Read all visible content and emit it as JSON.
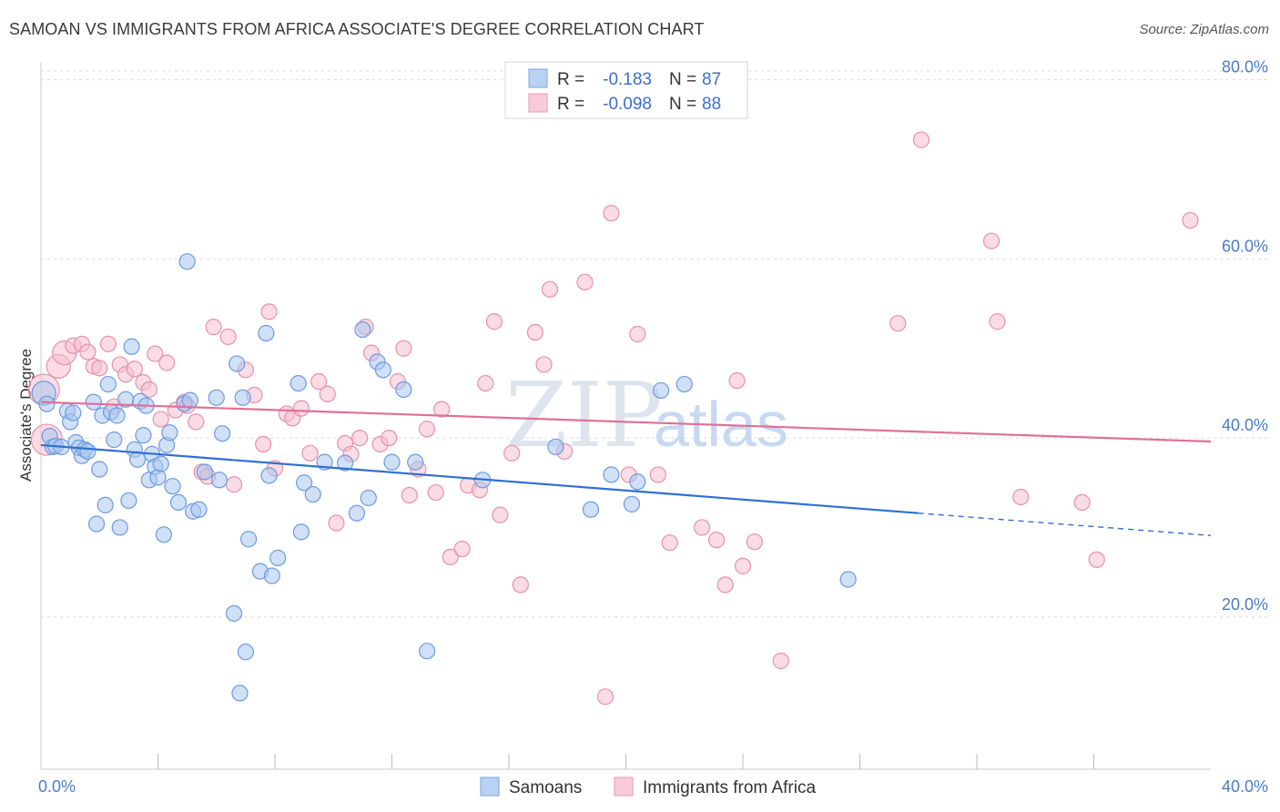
{
  "title": "SAMOAN VS IMMIGRANTS FROM AFRICA ASSOCIATE'S DEGREE CORRELATION CHART",
  "source": "Source: ZipAtlas.com",
  "watermark": {
    "zip": "ZIP",
    "atlas": "atlas"
  },
  "chart_data": {
    "type": "scatter",
    "xlabel": "",
    "ylabel": "Associate's Degree",
    "xlim": [
      0,
      40
    ],
    "ylim": [
      3,
      82
    ],
    "x_ticks": [
      {
        "value": 0,
        "label": "0.0%"
      },
      {
        "value": 40,
        "label": "40.0%"
      }
    ],
    "x_minor_ticks": [
      4,
      8,
      12,
      16,
      20,
      24,
      28,
      32,
      36
    ],
    "y_ticks": [
      {
        "value": 20,
        "label": "20.0%"
      },
      {
        "value": 40,
        "label": "40.0%"
      },
      {
        "value": 60,
        "label": "60.0%"
      },
      {
        "value": 80,
        "label": "80.0%"
      }
    ],
    "grid": true,
    "legend": {
      "position": "top-center",
      "entries": [
        {
          "r_label": "R =",
          "r_value": "-0.183",
          "n_label": "N =",
          "n_value": "87"
        },
        {
          "r_label": "R =",
          "r_value": "-0.098",
          "n_label": "N =",
          "n_value": "88"
        }
      ]
    },
    "series": [
      {
        "name": "Samoans",
        "color": "#a9c7ef",
        "stroke": "#6b9be0",
        "line_color": "#2f6fd0",
        "trend": {
          "x0": 0,
          "y0": 39.2,
          "x1": 30,
          "y1": 31.6,
          "dash_to_x": 40,
          "dash_to_y": 29.1
        },
        "points": [
          [
            0.1,
            45.0,
            2
          ],
          [
            0.2,
            43.8,
            1
          ],
          [
            0.3,
            40.2,
            1
          ],
          [
            0.4,
            39.0,
            1
          ],
          [
            0.5,
            39.1,
            1
          ],
          [
            0.7,
            39.0,
            1
          ],
          [
            0.9,
            43.0,
            1
          ],
          [
            1.0,
            41.8,
            1
          ],
          [
            1.1,
            42.8,
            1
          ],
          [
            1.2,
            39.5,
            1
          ],
          [
            1.3,
            38.9,
            1
          ],
          [
            1.4,
            38.0,
            1
          ],
          [
            1.5,
            38.7,
            1
          ],
          [
            1.6,
            38.5,
            1
          ],
          [
            1.8,
            44.0,
            1
          ],
          [
            1.9,
            30.4,
            1
          ],
          [
            2.0,
            36.5,
            1
          ],
          [
            2.1,
            42.5,
            1
          ],
          [
            2.2,
            32.5,
            1
          ],
          [
            2.3,
            46.0,
            1
          ],
          [
            2.4,
            42.9,
            1
          ],
          [
            2.5,
            39.8,
            1
          ],
          [
            2.6,
            42.5,
            1
          ],
          [
            2.7,
            30.0,
            1
          ],
          [
            2.9,
            44.3,
            1
          ],
          [
            3.0,
            33.0,
            1
          ],
          [
            3.1,
            50.2,
            1
          ],
          [
            3.2,
            38.7,
            1
          ],
          [
            3.3,
            37.6,
            1
          ],
          [
            3.4,
            44.1,
            1
          ],
          [
            3.5,
            40.3,
            1
          ],
          [
            3.6,
            43.6,
            1
          ],
          [
            3.7,
            35.3,
            1
          ],
          [
            3.8,
            38.2,
            1
          ],
          [
            3.9,
            36.8,
            1
          ],
          [
            4.0,
            35.6,
            1
          ],
          [
            4.1,
            37.1,
            1
          ],
          [
            4.2,
            29.2,
            1
          ],
          [
            4.3,
            39.2,
            1
          ],
          [
            4.4,
            40.6,
            1
          ],
          [
            4.5,
            34.6,
            1
          ],
          [
            4.7,
            32.8,
            1
          ],
          [
            4.9,
            43.8,
            1
          ],
          [
            5.0,
            59.7,
            1
          ],
          [
            5.1,
            44.2,
            1
          ],
          [
            5.2,
            31.8,
            1
          ],
          [
            5.4,
            32.0,
            1
          ],
          [
            5.6,
            36.2,
            1
          ],
          [
            6.0,
            44.5,
            1
          ],
          [
            6.1,
            35.3,
            1
          ],
          [
            6.2,
            40.5,
            1
          ],
          [
            6.6,
            20.4,
            1
          ],
          [
            6.7,
            48.3,
            1
          ],
          [
            6.8,
            11.5,
            1
          ],
          [
            6.9,
            44.5,
            1
          ],
          [
            7.0,
            16.1,
            1
          ],
          [
            7.1,
            28.7,
            1
          ],
          [
            7.5,
            25.1,
            1
          ],
          [
            7.7,
            51.7,
            1
          ],
          [
            7.8,
            35.8,
            1
          ],
          [
            7.9,
            24.6,
            1
          ],
          [
            8.1,
            26.6,
            1
          ],
          [
            8.8,
            46.1,
            1
          ],
          [
            8.9,
            29.5,
            1
          ],
          [
            9.0,
            35.0,
            1
          ],
          [
            9.3,
            33.7,
            1
          ],
          [
            9.7,
            37.3,
            1
          ],
          [
            10.4,
            37.2,
            1
          ],
          [
            10.8,
            31.6,
            1
          ],
          [
            11.0,
            52.1,
            1
          ],
          [
            11.2,
            33.3,
            1
          ],
          [
            11.5,
            48.5,
            1
          ],
          [
            11.7,
            47.6,
            1
          ],
          [
            12.0,
            37.3,
            1
          ],
          [
            12.4,
            45.4,
            1
          ],
          [
            12.8,
            37.3,
            1
          ],
          [
            13.2,
            16.2,
            1
          ],
          [
            15.1,
            35.3,
            1
          ],
          [
            17.6,
            39.0,
            1
          ],
          [
            18.8,
            32.0,
            1
          ],
          [
            19.5,
            35.9,
            1
          ],
          [
            20.2,
            32.6,
            1
          ],
          [
            20.4,
            35.1,
            1
          ],
          [
            21.2,
            45.3,
            1
          ],
          [
            22.0,
            46.0,
            1
          ],
          [
            27.6,
            24.2,
            1
          ]
        ]
      },
      {
        "name": "Immigrants from Africa",
        "color": "#f6c0d0",
        "stroke": "#e890aa",
        "line_color": "#e07099",
        "trend": {
          "x0": 0,
          "y0": 44.0,
          "x1": 40,
          "y1": 39.6
        },
        "points": [
          [
            0.1,
            45.4,
            3
          ],
          [
            0.2,
            39.8,
            3
          ],
          [
            0.6,
            48.0,
            2
          ],
          [
            0.8,
            49.5,
            2
          ],
          [
            1.1,
            50.3,
            1
          ],
          [
            1.4,
            50.5,
            1
          ],
          [
            1.6,
            49.6,
            1
          ],
          [
            1.8,
            48.0,
            1
          ],
          [
            2.0,
            47.8,
            1
          ],
          [
            2.3,
            50.5,
            1
          ],
          [
            2.5,
            43.5,
            1
          ],
          [
            2.7,
            48.2,
            1
          ],
          [
            2.9,
            47.1,
            1
          ],
          [
            3.2,
            47.7,
            1
          ],
          [
            3.5,
            46.2,
            1
          ],
          [
            3.7,
            45.4,
            1
          ],
          [
            3.9,
            49.4,
            1
          ],
          [
            4.1,
            42.1,
            1
          ],
          [
            4.3,
            48.4,
            1
          ],
          [
            4.6,
            43.1,
            1
          ],
          [
            4.9,
            44.0,
            1
          ],
          [
            5.0,
            43.6,
            1
          ],
          [
            5.3,
            41.8,
            1
          ],
          [
            5.5,
            36.2,
            1
          ],
          [
            5.7,
            35.7,
            1
          ],
          [
            5.9,
            52.4,
            1
          ],
          [
            6.4,
            51.3,
            1
          ],
          [
            6.6,
            34.8,
            1
          ],
          [
            7.0,
            47.6,
            1
          ],
          [
            7.3,
            44.8,
            1
          ],
          [
            7.6,
            39.3,
            1
          ],
          [
            7.8,
            54.1,
            1
          ],
          [
            8.0,
            36.6,
            1
          ],
          [
            8.4,
            42.7,
            1
          ],
          [
            8.6,
            42.2,
            1
          ],
          [
            8.9,
            43.3,
            1
          ],
          [
            9.2,
            38.3,
            1
          ],
          [
            9.5,
            46.3,
            1
          ],
          [
            9.8,
            44.9,
            1
          ],
          [
            10.1,
            30.5,
            1
          ],
          [
            10.4,
            39.4,
            1
          ],
          [
            10.6,
            38.2,
            1
          ],
          [
            10.9,
            40.0,
            1
          ],
          [
            11.1,
            52.4,
            1
          ],
          [
            11.3,
            49.5,
            1
          ],
          [
            11.6,
            39.3,
            1
          ],
          [
            11.9,
            40.0,
            1
          ],
          [
            12.2,
            46.3,
            1
          ],
          [
            12.4,
            50.0,
            1
          ],
          [
            12.6,
            33.6,
            1
          ],
          [
            12.9,
            36.5,
            1
          ],
          [
            13.2,
            41.0,
            1
          ],
          [
            13.5,
            33.9,
            1
          ],
          [
            13.7,
            43.2,
            1
          ],
          [
            14.0,
            26.7,
            1
          ],
          [
            14.4,
            27.6,
            1
          ],
          [
            14.6,
            34.7,
            1
          ],
          [
            15.0,
            34.2,
            1
          ],
          [
            15.2,
            46.1,
            1
          ],
          [
            15.5,
            53.0,
            1
          ],
          [
            15.7,
            31.4,
            1
          ],
          [
            16.1,
            38.3,
            1
          ],
          [
            16.4,
            23.6,
            1
          ],
          [
            16.9,
            51.8,
            1
          ],
          [
            17.2,
            48.2,
            1
          ],
          [
            17.4,
            56.6,
            1
          ],
          [
            17.9,
            38.5,
            1
          ],
          [
            18.6,
            57.4,
            1
          ],
          [
            19.3,
            11.1,
            1
          ],
          [
            19.5,
            65.1,
            1
          ],
          [
            20.1,
            35.9,
            1
          ],
          [
            20.4,
            51.6,
            1
          ],
          [
            21.1,
            35.9,
            1
          ],
          [
            21.5,
            28.3,
            1
          ],
          [
            22.6,
            30.0,
            1
          ],
          [
            23.1,
            28.6,
            1
          ],
          [
            23.4,
            23.6,
            1
          ],
          [
            23.8,
            46.4,
            1
          ],
          [
            24.0,
            25.7,
            1
          ],
          [
            24.4,
            28.4,
            1
          ],
          [
            25.3,
            15.1,
            1
          ],
          [
            29.3,
            52.8,
            1
          ],
          [
            30.1,
            73.3,
            1
          ],
          [
            32.5,
            62.0,
            1
          ],
          [
            32.7,
            53.0,
            1
          ],
          [
            33.5,
            33.4,
            1
          ],
          [
            35.6,
            32.8,
            1
          ],
          [
            36.1,
            26.4,
            1
          ],
          [
            39.3,
            64.3,
            1
          ]
        ]
      }
    ]
  }
}
